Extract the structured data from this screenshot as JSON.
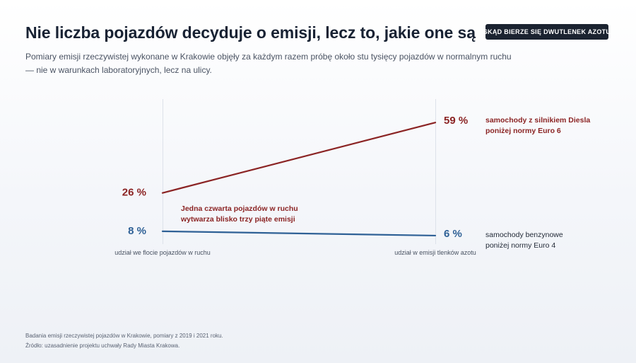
{
  "header": {
    "title": "Nie liczba pojazdów decyduje o emisji, lecz to, jakie one są",
    "subtitle": "Pomiary emisji rzeczywistej wykonane w Krakowie objęły za każdym razem próbę około stu tysięcy pojazdów w normalnym ruchu — nie w warunkach laboratoryjnych, lecz na ulicy.",
    "cta_label": "SKĄD BIERZE SIĘ DWUTLENEK AZOTU"
  },
  "chart_data": {
    "type": "line",
    "categories": [
      "udział we flocie pojazdów w ruchu",
      "udział w emisji tlenków azotu"
    ],
    "unit": "%",
    "ylim": [
      0,
      70
    ],
    "grid": false,
    "series": [
      {
        "name": "samochody z silnikiem Diesla poniżej normy Euro 6",
        "name_lines": [
          "samochody z silnikiem Diesla",
          "poniżej normy Euro 6"
        ],
        "values": [
          26,
          59
        ],
        "value_labels": [
          "26 %",
          "59 %"
        ],
        "color": "#8b2424"
      },
      {
        "name": "samochody benzynowe poniżej normy Euro 4",
        "name_lines": [
          "samochody benzynowe",
          "poniżej normy Euro 4"
        ],
        "values": [
          8,
          6
        ],
        "value_labels": [
          "8 %",
          "6 %"
        ],
        "color": "#2f6196"
      }
    ],
    "annotation": {
      "lines": [
        "Jedna czwarta pojazdów w ruchu",
        "wytwarza blisko trzy piąte emisji"
      ],
      "color": "#8b2424"
    }
  },
  "footer": {
    "note": "Badania emisji rzeczywistej pojazdów w Krakowie, pomiary z 2019 i 2021 roku.",
    "source": "Źródło: uzasadnienie projektu uchwały Rady Miasta Krakowa."
  }
}
